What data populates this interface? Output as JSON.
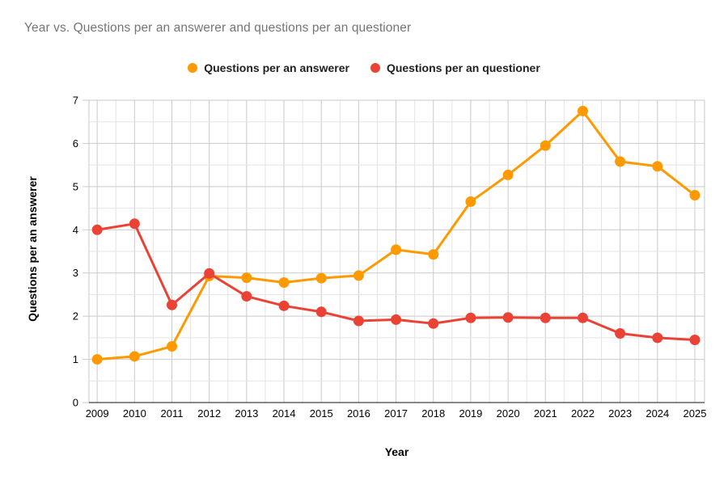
{
  "title": "Year vs. Questions per an answerer and questions per an questioner",
  "axis": {
    "x_title": "Year",
    "y_title": "Questions per an answerer"
  },
  "chart_data": {
    "type": "line",
    "title": "Year vs. Questions per an answerer and questions per an questioner",
    "xlabel": "Year",
    "ylabel": "Questions per an answerer",
    "x": [
      2009,
      2010,
      2011,
      2012,
      2013,
      2014,
      2015,
      2016,
      2017,
      2018,
      2019,
      2020,
      2021,
      2022,
      2023,
      2024,
      2025
    ],
    "series": [
      {
        "name": "Questions per an answerer",
        "color": "#FF9900",
        "values": [
          1.0,
          1.07,
          1.3,
          2.93,
          2.89,
          2.78,
          2.88,
          2.94,
          3.54,
          3.43,
          4.65,
          5.27,
          5.95,
          6.75,
          5.58,
          5.47,
          4.8
        ]
      },
      {
        "name": "Questions per an questioner",
        "color": "#EA4335",
        "values": [
          4.0,
          4.14,
          2.26,
          2.99,
          2.46,
          2.24,
          2.1,
          1.89,
          1.92,
          1.83,
          1.96,
          1.97,
          1.96,
          1.96,
          1.6,
          1.5,
          1.45
        ]
      }
    ],
    "ylim": [
      0,
      7
    ],
    "xlim": [
      2008.78,
      2025.26
    ],
    "y_major_step": 1,
    "y_minor_step": 0.5,
    "x_major_step": 1,
    "x_minor_step": 0.5,
    "grid": true,
    "legend_position": "top",
    "colors": {
      "grid_major": "#c9c9c9",
      "grid_minor": "#e4e4e4",
      "axis_line": "#424242",
      "tick_label": "#000000",
      "title": "#757575"
    }
  }
}
